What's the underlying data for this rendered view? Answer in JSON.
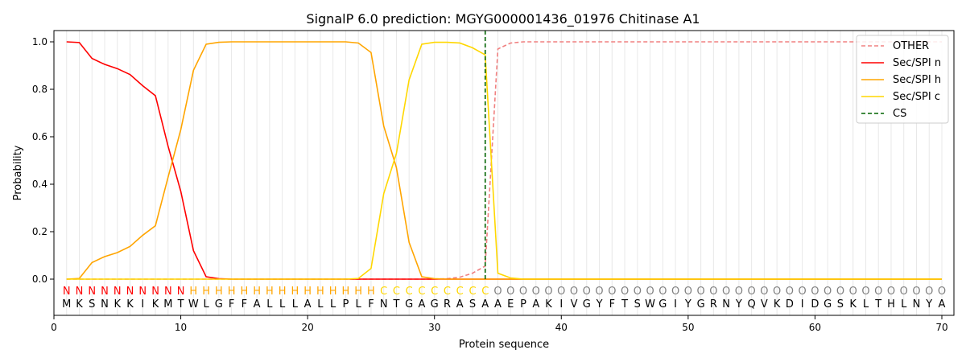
{
  "chart_data": {
    "type": "line",
    "title": "SignalP 6.0 prediction: MGYG000001436_01976 Chitinase A1",
    "xlabel": "Protein sequence",
    "ylabel": "Probability",
    "xlim": [
      0,
      71
    ],
    "ylim": [
      -0.15,
      1.05
    ],
    "xticks": [
      0,
      10,
      20,
      30,
      40,
      50,
      60,
      70
    ],
    "yticks": [
      0.0,
      0.2,
      0.4,
      0.6,
      0.8,
      1.0
    ],
    "sequence": "MKSNKKIKMTWLGFFALLLALLPLFNTGAGRASAAEPAKIVGYFTSWGIYGRNYQVKDIDGSKLTHLNYA",
    "labels": "NNNNNNNNNNHHHHHHHHHHHHHHHCCCCCCCCCOOOOOOOOOOOOOOOOOOOOOOOOOOOOOOOOOOOO",
    "label_colors": {
      "N": "#ff0000",
      "H": "#ffa500",
      "C": "#ffd700",
      "O": "#808080"
    },
    "cs_position": 34,
    "legend_position": "top-right",
    "series": [
      {
        "name": "OTHER",
        "color": "#f08080",
        "dash": true,
        "values": [
          0,
          0,
          0,
          0,
          0,
          0,
          0,
          0,
          0,
          0,
          0,
          0,
          0,
          0,
          0,
          0,
          0,
          0,
          0,
          0,
          0,
          0,
          0,
          0,
          0,
          0,
          0,
          0,
          0,
          0,
          0.002,
          0.008,
          0.025,
          0.055,
          0.97,
          0.995,
          1,
          1,
          1,
          1,
          1,
          1,
          1,
          1,
          1,
          1,
          1,
          1,
          1,
          1,
          1,
          1,
          1,
          1,
          1,
          1,
          1,
          1,
          1,
          1,
          1,
          1,
          1,
          1,
          1,
          1,
          1,
          1,
          1,
          1
        ]
      },
      {
        "name": "Sec/SPI n",
        "color": "#ff0000",
        "values": [
          1.0,
          0.997,
          0.93,
          0.905,
          0.887,
          0.862,
          0.815,
          0.773,
          0.56,
          0.37,
          0.12,
          0.01,
          0.002,
          0,
          0,
          0,
          0,
          0,
          0,
          0,
          0,
          0,
          0,
          0,
          0,
          0,
          0,
          0,
          0,
          0,
          0,
          0,
          0,
          0,
          0,
          0,
          0,
          0,
          0,
          0,
          0,
          0,
          0,
          0,
          0,
          0,
          0,
          0,
          0,
          0,
          0,
          0,
          0,
          0,
          0,
          0,
          0,
          0,
          0,
          0,
          0,
          0,
          0,
          0,
          0,
          0,
          0,
          0,
          0,
          0
        ]
      },
      {
        "name": "Sec/SPI h",
        "color": "#ffa500",
        "values": [
          0,
          0.003,
          0.07,
          0.095,
          0.112,
          0.138,
          0.185,
          0.225,
          0.43,
          0.63,
          0.88,
          0.99,
          0.998,
          1,
          1,
          1,
          1,
          1,
          1,
          1,
          1,
          1,
          1,
          0.995,
          0.955,
          0.645,
          0.47,
          0.155,
          0.01,
          0.002,
          0,
          0,
          0,
          0,
          0,
          0,
          0,
          0,
          0,
          0,
          0,
          0,
          0,
          0,
          0,
          0,
          0,
          0,
          0,
          0,
          0,
          0,
          0,
          0,
          0,
          0,
          0,
          0,
          0,
          0,
          0,
          0,
          0,
          0,
          0,
          0,
          0,
          0,
          0,
          0
        ]
      },
      {
        "name": "Sec/SPI c",
        "color": "#ffd700",
        "values": [
          0,
          0,
          0,
          0,
          0,
          0,
          0,
          0,
          0,
          0,
          0,
          0,
          0,
          0,
          0,
          0,
          0,
          0,
          0,
          0,
          0,
          0,
          0,
          0.003,
          0.045,
          0.36,
          0.53,
          0.84,
          0.99,
          0.998,
          0.998,
          0.995,
          0.975,
          0.945,
          0.025,
          0.005,
          0,
          0,
          0,
          0,
          0,
          0,
          0,
          0,
          0,
          0,
          0,
          0,
          0,
          0,
          0,
          0,
          0,
          0,
          0,
          0,
          0,
          0,
          0,
          0,
          0,
          0,
          0,
          0,
          0,
          0,
          0,
          0,
          0,
          0
        ]
      },
      {
        "name": "CS",
        "color": "#006400",
        "dash": true
      }
    ]
  }
}
